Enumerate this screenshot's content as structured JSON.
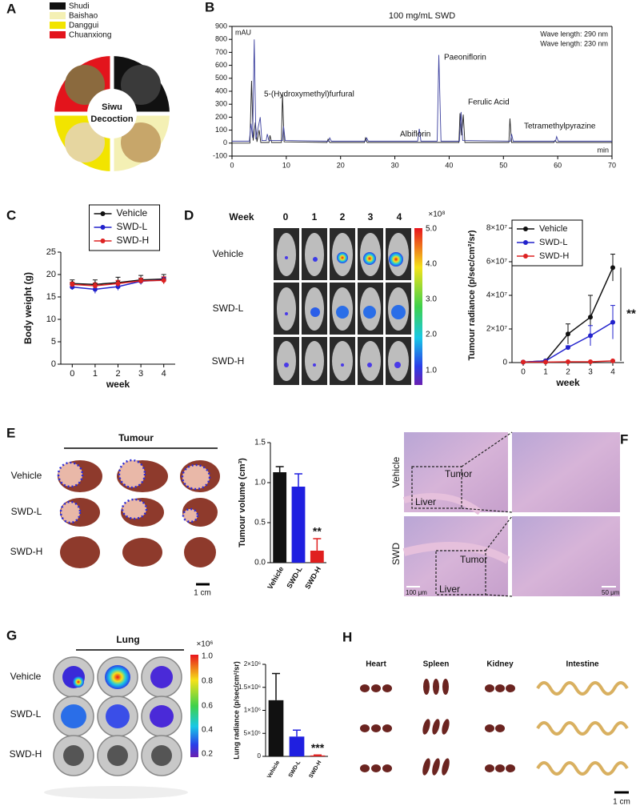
{
  "panels": {
    "A": {
      "letter": "A",
      "legend": [
        "Shudi",
        "Baishao",
        "Danggui",
        "Chuanxiong"
      ],
      "center": [
        "Siwu",
        "Decoction"
      ]
    },
    "B": {
      "letter": "B"
    },
    "C": {
      "letter": "C"
    },
    "D": {
      "letter": "D",
      "week_label": "Week",
      "weeks": [
        "0",
        "1",
        "2",
        "3",
        "4"
      ],
      "rows": [
        "Vehicle",
        "SWD-L",
        "SWD-H"
      ],
      "colorbar_unit": "×10⁸",
      "colorbar_ticks": [
        "5.0",
        "4.0",
        "3.0",
        "2.0",
        "1.0"
      ]
    },
    "E": {
      "letter": "E",
      "group": "Tumour",
      "rows": [
        "Vehicle",
        "SWD-L",
        "SWD-H"
      ],
      "scale": "1 cm"
    },
    "F": {
      "letter": "F",
      "rows": [
        "Vehicle",
        "SWD"
      ],
      "tumor": "Tumor",
      "liver": "Liver",
      "scale_left": "100 μm",
      "scale_right": "50 μm"
    },
    "G": {
      "letter": "G",
      "group": "Lung",
      "rows": [
        "Vehicle",
        "SWD-L",
        "SWD-H"
      ],
      "colorbar_unit": "×10⁶",
      "colorbar_ticks": [
        "1.0",
        "0.8",
        "0.6",
        "0.4",
        "0.2"
      ]
    },
    "H": {
      "letter": "H",
      "organs": [
        "Heart",
        "Spleen",
        "Kidney",
        "Intestine"
      ],
      "scale": "1 cm"
    }
  },
  "chart_data": [
    {
      "type": "line",
      "title": "100 mg/mL SWD",
      "y_label": "mAU",
      "x_label": "min",
      "xlim": [
        0,
        70
      ],
      "xticks": [
        0,
        10,
        20,
        30,
        40,
        50,
        60,
        70
      ],
      "ylim": [
        -100,
        900
      ],
      "yticks": [
        -100,
        0,
        100,
        200,
        300,
        400,
        500,
        600,
        700,
        800,
        900
      ],
      "legend": "upper right",
      "series": [
        {
          "name": "Wave length: 290 nm",
          "color": "#222222",
          "x": [
            0,
            3.3,
            3.6,
            3.9,
            4.3,
            4.6,
            5.0,
            5.3,
            6.8,
            7.0,
            7.3,
            9.1,
            9.3,
            9.6,
            17.5,
            17.7,
            18.0,
            24.4,
            24.6,
            24.9,
            41.8,
            42.0,
            42.3,
            42.6,
            42.9,
            51.0,
            51.2,
            51.5,
            59.3,
            59.5,
            59.8,
            70
          ],
          "values": [
            0,
            0,
            480,
            20,
            160,
            10,
            100,
            5,
            5,
            60,
            5,
            5,
            380,
            10,
            5,
            30,
            5,
            5,
            40,
            5,
            5,
            230,
            60,
            220,
            5,
            5,
            190,
            5,
            5,
            20,
            5,
            5
          ]
        },
        {
          "name": "Wave length: 230 nm",
          "color": "#3b3f9e",
          "x": [
            0,
            3.2,
            3.5,
            3.8,
            4.1,
            4.4,
            5.2,
            5.5,
            6.3,
            6.5,
            6.8,
            9.3,
            9.5,
            9.8,
            17.8,
            18.0,
            18.3,
            24.6,
            24.8,
            25.1,
            34.2,
            34.5,
            34.8,
            37.8,
            38.1,
            38.5,
            41.9,
            42.2,
            42.5,
            51.3,
            51.5,
            51.8,
            59.6,
            59.8,
            60.1,
            70
          ],
          "values": [
            15,
            15,
            150,
            40,
            800,
            30,
            200,
            20,
            20,
            70,
            20,
            20,
            130,
            20,
            15,
            40,
            15,
            15,
            40,
            15,
            15,
            110,
            15,
            15,
            680,
            15,
            15,
            240,
            20,
            15,
            70,
            15,
            15,
            50,
            15,
            15
          ]
        }
      ],
      "annotations": [
        {
          "text": "5-(Hydroxymethyl)furfural",
          "color": "#222222"
        },
        {
          "text": "Albiflorin",
          "color": "#3b3f9e"
        },
        {
          "text": "Paeoniflorin",
          "color": "#3b3f9e"
        },
        {
          "text": "Ferulic Acid",
          "color": "#222222"
        },
        {
          "text": "Tetramethylpyrazine",
          "color": "#222222"
        }
      ]
    },
    {
      "type": "line",
      "y_label": "Body weight (g)",
      "x_label": "week",
      "x": [
        0,
        1,
        2,
        3,
        4
      ],
      "xlim": [
        -0.5,
        4.5
      ],
      "xticks": [
        0,
        1,
        2,
        3,
        4
      ],
      "ylim": [
        0,
        25
      ],
      "yticks": [
        0,
        5,
        10,
        15,
        20,
        25
      ],
      "legend": "top",
      "markers": true,
      "series": [
        {
          "name": "Vehicle",
          "color": "#111111",
          "values": [
            18.0,
            17.8,
            18.2,
            18.8,
            19.0
          ],
          "errors": [
            0.8,
            1.0,
            1.2,
            1.0,
            1.0
          ]
        },
        {
          "name": "SWD-L",
          "color": "#2222cc",
          "values": [
            17.2,
            16.7,
            17.3,
            18.5,
            18.8
          ],
          "errors": [
            0.6,
            0.9,
            0.8,
            0.7,
            0.6
          ]
        },
        {
          "name": "SWD-H",
          "color": "#dd2222",
          "values": [
            17.8,
            17.5,
            18.0,
            18.6,
            18.7
          ],
          "errors": [
            0.5,
            0.6,
            0.7,
            0.6,
            0.8
          ]
        }
      ]
    },
    {
      "type": "line",
      "y_label": "Tumour radiance (p/sec/cm²/sr)",
      "x_label": "week",
      "x": [
        0,
        1,
        2,
        3,
        4
      ],
      "xlim": [
        -0.5,
        4.5
      ],
      "xticks": [
        0,
        1,
        2,
        3,
        4
      ],
      "ylim": [
        0,
        80000000
      ],
      "yticks": [
        0,
        {
          "value": 20000000,
          "label": "2×10⁷"
        },
        {
          "value": 40000000,
          "label": "4×10⁷"
        },
        {
          "value": 60000000,
          "label": "6×10⁷"
        },
        {
          "value": 80000000,
          "label": "8×10⁷"
        }
      ],
      "legend": "upper left",
      "markers": true,
      "series": [
        {
          "name": "Vehicle",
          "color": "#111111",
          "values": [
            300000,
            1000000,
            17000000,
            27000000,
            56500000
          ],
          "errors": [
            100000,
            300000,
            6000000,
            13000000,
            8000000
          ]
        },
        {
          "name": "SWD-L",
          "color": "#2222cc",
          "values": [
            300000,
            1000000,
            9000000,
            16000000,
            24000000
          ],
          "errors": [
            100000,
            300000,
            1000000,
            6000000,
            10000000
          ]
        },
        {
          "name": "SWD-H",
          "color": "#dd2222",
          "values": [
            300000,
            300000,
            500000,
            500000,
            1000000
          ],
          "errors": [
            0,
            0,
            100000,
            100000,
            200000
          ]
        }
      ],
      "annotations": [
        {
          "text": "**"
        }
      ]
    },
    {
      "type": "bar",
      "y_label": "Tumour volume (cm³)",
      "categories": [
        "Vehicle",
        "SWD-L",
        "SWD-H"
      ],
      "values": [
        1.13,
        0.95,
        0.15
      ],
      "errors": [
        0.07,
        0.16,
        0.15
      ],
      "colors": [
        "#111111",
        "#1f1fe0",
        "#e01f1f"
      ],
      "ylim": [
        0,
        1.5
      ],
      "yticks": [
        {
          "value": 0,
          "label": "0.0"
        },
        {
          "value": 0.5,
          "label": "0.5"
        },
        {
          "value": 1,
          "label": "1.0"
        },
        {
          "value": 1.5,
          "label": "1.5"
        }
      ],
      "annotations": [
        {
          "text": "**"
        }
      ]
    },
    {
      "type": "bar",
      "y_label": "Lung radiance (p/sec/cm²/sr)",
      "categories": [
        "Vehicle",
        "SWD-L",
        "SWD-H"
      ],
      "values": [
        1220000,
        430000,
        20000
      ],
      "errors": [
        580000,
        140000,
        10000
      ],
      "colors": [
        "#111111",
        "#1f1fe0",
        "#e01f1f"
      ],
      "ylim": [
        0,
        2000000
      ],
      "yticks": [
        0,
        {
          "value": 500000,
          "label": "5×10⁵"
        },
        {
          "value": 1000000,
          "label": "1×10⁶"
        },
        {
          "value": 1500000,
          "label": "1.5×10⁶"
        },
        {
          "value": 2000000,
          "label": "2×10⁶"
        }
      ],
      "annotations": [
        {
          "text": "***"
        }
      ]
    }
  ]
}
